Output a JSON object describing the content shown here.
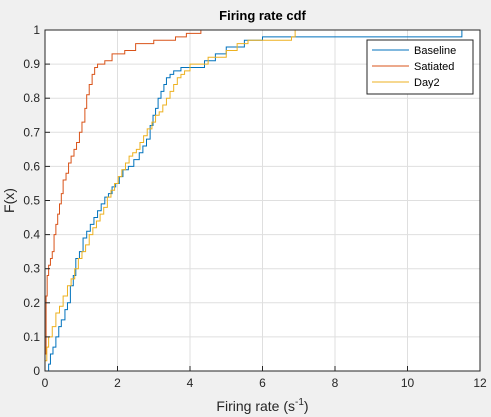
{
  "colors": {
    "figure_bg": "#f0f0f0",
    "axes_bg": "#ffffff",
    "grid": "#dfdfdf",
    "axis": "#262626",
    "baseline": "#0072bd",
    "satiated": "#d95319",
    "day2": "#edb120"
  },
  "chart_data": {
    "type": "line",
    "step": "post",
    "title": "Firing rate cdf",
    "xlabel_base": "Firing rate (s",
    "xlabel_sup": "-1",
    "xlabel_end": ")",
    "ylabel": "F(x)",
    "xlim": [
      0,
      12
    ],
    "ylim": [
      0,
      1
    ],
    "xticks": [
      0,
      2,
      4,
      6,
      8,
      10,
      12
    ],
    "xtick_labels": [
      "0",
      "2",
      "4",
      "6",
      "8",
      "10",
      "12"
    ],
    "yticks": [
      0,
      0.1,
      0.2,
      0.3,
      0.4,
      0.5,
      0.6,
      0.7,
      0.8,
      0.9,
      1
    ],
    "ytick_labels": [
      "0",
      "0.1",
      "0.2",
      "0.3",
      "0.4",
      "0.5",
      "0.6",
      "0.7",
      "0.8",
      "0.9",
      "1"
    ],
    "grid": true,
    "legend_position": "top-right",
    "series": [
      {
        "name": "Baseline",
        "x": [
          0,
          0.1,
          0.15,
          0.22,
          0.3,
          0.38,
          0.45,
          0.55,
          0.62,
          0.7,
          0.78,
          0.85,
          0.95,
          1.05,
          1.15,
          1.25,
          1.35,
          1.45,
          1.55,
          1.65,
          1.75,
          1.85,
          1.95,
          2.05,
          2.15,
          2.3,
          2.45,
          2.6,
          2.7,
          2.8,
          2.9,
          2.98,
          3.05,
          3.12,
          3.2,
          3.28,
          3.35,
          3.45,
          3.55,
          3.65,
          3.75,
          3.9,
          4.15,
          4.4,
          4.7,
          5.0,
          5.5,
          6.0,
          11.5
        ],
        "y": [
          0,
          0.02,
          0.05,
          0.07,
          0.1,
          0.13,
          0.15,
          0.18,
          0.2,
          0.25,
          0.28,
          0.33,
          0.35,
          0.39,
          0.41,
          0.43,
          0.45,
          0.47,
          0.49,
          0.51,
          0.52,
          0.54,
          0.55,
          0.57,
          0.59,
          0.6,
          0.62,
          0.64,
          0.66,
          0.68,
          0.72,
          0.75,
          0.77,
          0.8,
          0.82,
          0.84,
          0.86,
          0.87,
          0.88,
          0.88,
          0.89,
          0.89,
          0.89,
          0.91,
          0.93,
          0.95,
          0.97,
          0.98,
          1.0
        ]
      },
      {
        "name": "Satiated",
        "x": [
          0,
          0.03,
          0.06,
          0.1,
          0.15,
          0.2,
          0.25,
          0.3,
          0.35,
          0.4,
          0.45,
          0.5,
          0.58,
          0.65,
          0.72,
          0.8,
          0.87,
          0.95,
          1.02,
          1.1,
          1.15,
          1.22,
          1.3,
          1.37,
          1.45,
          1.55,
          1.65,
          1.75,
          1.85,
          2.0,
          2.2,
          2.5,
          2.8,
          3.0,
          3.3,
          3.6,
          3.9,
          4.05,
          4.15,
          4.3
        ],
        "y": [
          0.05,
          0.22,
          0.28,
          0.31,
          0.33,
          0.35,
          0.4,
          0.43,
          0.46,
          0.49,
          0.52,
          0.56,
          0.58,
          0.61,
          0.63,
          0.65,
          0.67,
          0.7,
          0.73,
          0.77,
          0.81,
          0.84,
          0.87,
          0.89,
          0.9,
          0.9,
          0.91,
          0.91,
          0.93,
          0.93,
          0.94,
          0.96,
          0.96,
          0.97,
          0.97,
          0.98,
          0.99,
          0.99,
          0.99,
          1.0
        ]
      },
      {
        "name": "Day2",
        "x": [
          0,
          0.05,
          0.1,
          0.2,
          0.3,
          0.4,
          0.5,
          0.62,
          0.72,
          0.82,
          0.92,
          1.02,
          1.12,
          1.22,
          1.32,
          1.42,
          1.52,
          1.62,
          1.72,
          1.82,
          1.92,
          2.02,
          2.12,
          2.22,
          2.32,
          2.42,
          2.52,
          2.62,
          2.72,
          2.82,
          2.95,
          3.05,
          3.15,
          3.25,
          3.35,
          3.45,
          3.55,
          3.65,
          3.75,
          3.85,
          4.0,
          4.5,
          5.0,
          5.3,
          5.6,
          6.8,
          6.9
        ],
        "y": [
          0.03,
          0.07,
          0.1,
          0.13,
          0.17,
          0.19,
          0.22,
          0.25,
          0.27,
          0.3,
          0.33,
          0.35,
          0.37,
          0.4,
          0.42,
          0.44,
          0.46,
          0.48,
          0.51,
          0.53,
          0.55,
          0.57,
          0.59,
          0.61,
          0.63,
          0.64,
          0.65,
          0.67,
          0.69,
          0.71,
          0.73,
          0.75,
          0.76,
          0.78,
          0.8,
          0.82,
          0.84,
          0.86,
          0.87,
          0.88,
          0.9,
          0.92,
          0.94,
          0.96,
          0.97,
          0.98,
          1.0
        ]
      }
    ]
  }
}
